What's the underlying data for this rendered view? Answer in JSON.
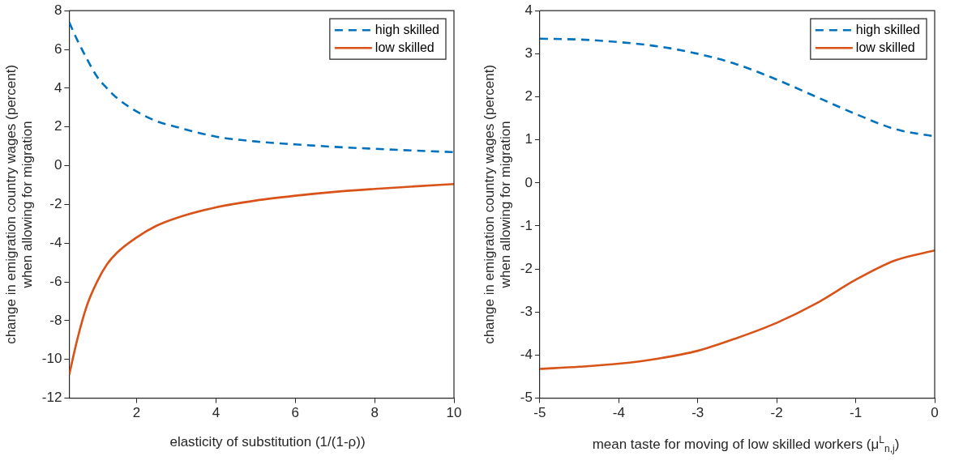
{
  "chart_data": [
    {
      "type": "line",
      "xlabel": "elasticity of substitution (1/(1-ρ))",
      "ylabel": "change in emigration country wages (percent)\nwhen allowing for migration",
      "legend": "top right",
      "x": [
        0.3,
        0.5,
        0.75,
        1,
        1.25,
        1.5,
        2,
        2.5,
        3,
        4,
        5,
        6,
        7,
        8,
        9,
        10
      ],
      "xlim": [
        0.3,
        10
      ],
      "xticks": [
        2,
        4,
        6,
        8,
        10
      ],
      "ylim": [
        -12,
        8
      ],
      "yticks": [
        -12,
        -10,
        -8,
        -6,
        -4,
        -2,
        0,
        2,
        4,
        6,
        8
      ],
      "series": [
        {
          "name": "high skilled",
          "color": "#0072bd",
          "line_style": "dashed",
          "values": [
            7.4,
            6.5,
            5.5,
            4.6,
            4.0,
            3.5,
            2.8,
            2.3,
            2.0,
            1.5,
            1.25,
            1.1,
            0.97,
            0.87,
            0.78,
            0.7
          ]
        },
        {
          "name": "low skilled",
          "color": "#d95319",
          "line_style": "solid",
          "values": [
            -10.8,
            -9.0,
            -7.2,
            -6.0,
            -5.1,
            -4.5,
            -3.7,
            -3.1,
            -2.7,
            -2.15,
            -1.8,
            -1.55,
            -1.35,
            -1.2,
            -1.07,
            -0.95
          ]
        }
      ]
    },
    {
      "type": "line",
      "xlabel": "mean taste for moving of low skilled workers (μ$^{L}$$_{n,j}$)",
      "ylabel": "change in emigration country wages (percent)\nwhen allowing for migration",
      "legend": "top right",
      "x": [
        -5,
        -4.5,
        -4,
        -3.5,
        -3,
        -2.5,
        -2,
        -1.5,
        -1,
        -0.5,
        0
      ],
      "xlim": [
        -5,
        0
      ],
      "xticks": [
        -5,
        -4,
        -3,
        -2,
        -1,
        0
      ],
      "ylim": [
        -5,
        4
      ],
      "yticks": [
        -5,
        -4,
        -3,
        -2,
        -1,
        0,
        1,
        2,
        3,
        4
      ],
      "series": [
        {
          "name": "high skilled",
          "color": "#0072bd",
          "line_style": "dashed",
          "values": [
            3.35,
            3.33,
            3.27,
            3.17,
            3.0,
            2.75,
            2.4,
            2.0,
            1.6,
            1.25,
            1.08
          ]
        },
        {
          "name": "low skilled",
          "color": "#d95319",
          "line_style": "solid",
          "values": [
            -4.32,
            -4.27,
            -4.2,
            -4.08,
            -3.9,
            -3.6,
            -3.25,
            -2.8,
            -2.25,
            -1.8,
            -1.57
          ]
        }
      ]
    }
  ]
}
